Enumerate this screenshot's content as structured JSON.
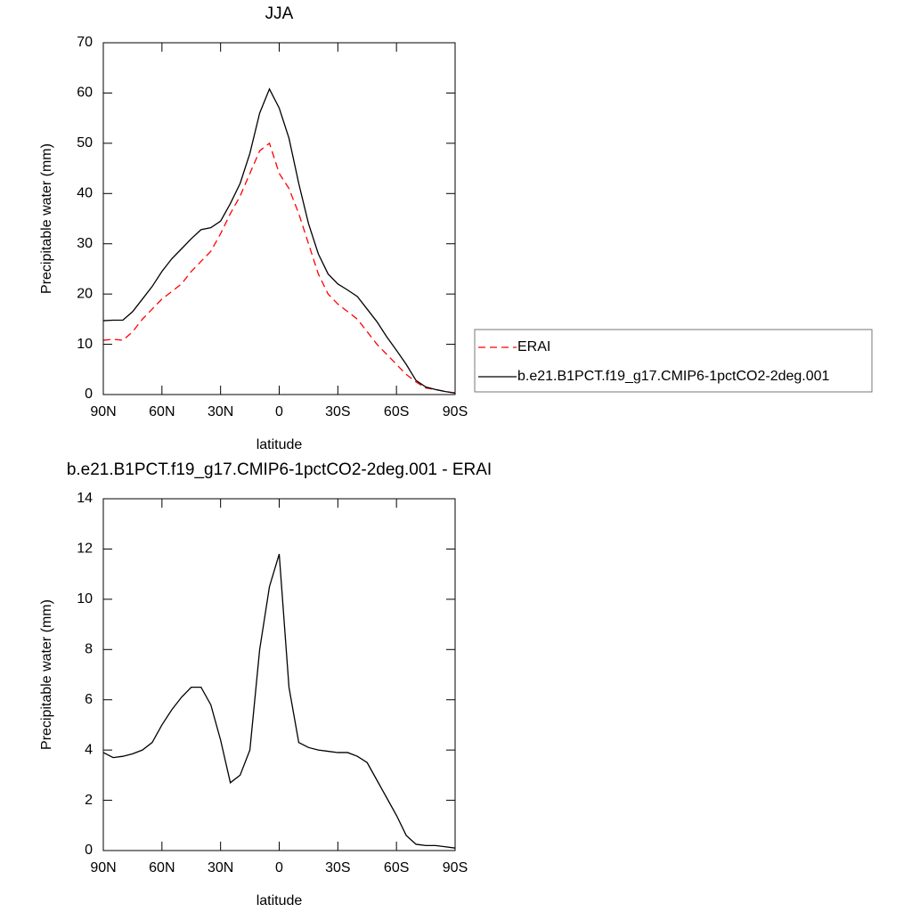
{
  "chart_data": [
    {
      "type": "line",
      "title": "JJA",
      "xlabel": "latitude",
      "ylabel": "Precipitable water (mm)",
      "x": [
        90,
        85,
        80,
        75,
        70,
        65,
        60,
        55,
        50,
        45,
        40,
        35,
        30,
        25,
        20,
        15,
        10,
        5,
        0,
        -5,
        -10,
        -15,
        -20,
        -25,
        -30,
        -35,
        -40,
        -45,
        -50,
        -55,
        -60,
        -65,
        -70,
        -75,
        -80,
        -85,
        -90
      ],
      "series": [
        {
          "name": "ERAI",
          "color": "#ff0000",
          "dashed": true,
          "values": [
            10.8,
            11,
            10.8,
            12.5,
            15,
            17,
            19,
            20.5,
            22,
            24.5,
            26.5,
            28.5,
            32,
            36,
            39.5,
            44,
            48.5,
            50,
            44,
            41,
            36,
            30,
            24,
            20,
            18,
            16.5,
            15,
            12.5,
            10,
            8,
            6,
            4,
            2.5,
            1.3,
            1,
            0.6,
            0.3
          ]
        },
        {
          "name": "b.e21.B1PCT.f19_g17.CMIP6-1pctCO2-2deg.001",
          "color": "#000000",
          "dashed": false,
          "values": [
            14.7,
            14.8,
            14.8,
            16.5,
            19,
            21.5,
            24.5,
            27,
            29,
            31,
            32.8,
            33.2,
            34.5,
            38,
            42,
            48,
            56,
            60.8,
            57,
            51,
            42,
            34,
            28,
            24,
            22,
            20.8,
            19.5,
            17,
            14.5,
            11.5,
            8.8,
            6,
            2.8,
            1.5,
            1,
            0.6,
            0.3
          ]
        }
      ],
      "xlim": [
        90,
        -90
      ],
      "xticks": [
        {
          "value": 90,
          "label": "90N"
        },
        {
          "value": 60,
          "label": "60N"
        },
        {
          "value": 30,
          "label": "30N"
        },
        0,
        {
          "value": -30,
          "label": "30S"
        },
        {
          "value": -60,
          "label": "60S"
        },
        {
          "value": -90,
          "label": "90S"
        }
      ],
      "ylim": [
        0,
        70
      ],
      "yticks": [
        0,
        10,
        20,
        30,
        40,
        50,
        60,
        70
      ],
      "legend": "right"
    },
    {
      "type": "line",
      "title": "b.e21.B1PCT.f19_g17.CMIP6-1pctCO2-2deg.001 - ERAI",
      "xlabel": "latitude",
      "ylabel": "Precipitable water (mm)",
      "x": [
        90,
        85,
        80,
        75,
        70,
        65,
        60,
        55,
        50,
        45,
        40,
        35,
        30,
        25,
        20,
        15,
        10,
        5,
        0,
        -5,
        -10,
        -15,
        -20,
        -25,
        -30,
        -35,
        -40,
        -45,
        -50,
        -55,
        -60,
        -65,
        -70,
        -75,
        -80,
        -85,
        -90
      ],
      "series": [
        {
          "color": "#000000",
          "dashed": false,
          "values": [
            3.9,
            3.7,
            3.75,
            3.85,
            4.0,
            4.3,
            5.0,
            5.6,
            6.1,
            6.5,
            6.5,
            5.8,
            4.4,
            2.7,
            3.0,
            4.0,
            8.0,
            10.5,
            11.8,
            6.5,
            4.3,
            4.1,
            4.0,
            3.95,
            3.9,
            3.9,
            3.75,
            3.5,
            2.8,
            2.1,
            1.4,
            0.6,
            0.25,
            0.2,
            0.2,
            0.15,
            0.1
          ]
        }
      ],
      "xlim": [
        90,
        -90
      ],
      "xticks": [
        {
          "value": 90,
          "label": "90N"
        },
        {
          "value": 60,
          "label": "60N"
        },
        {
          "value": 30,
          "label": "30N"
        },
        0,
        {
          "value": -30,
          "label": "30S"
        },
        {
          "value": -60,
          "label": "60S"
        },
        {
          "value": -90,
          "label": "90S"
        }
      ],
      "ylim": [
        0,
        14
      ],
      "yticks": [
        0,
        2,
        4,
        6,
        8,
        10,
        12,
        14
      ]
    }
  ]
}
